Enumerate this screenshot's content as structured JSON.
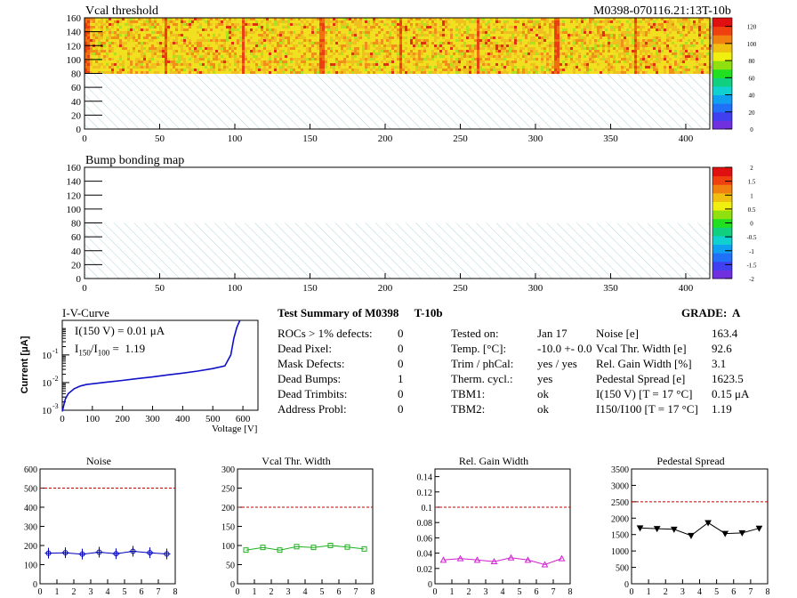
{
  "header": {
    "title": "Vcal threshold",
    "module_id": "M0398-070116.21:13T-10b"
  },
  "maps": [
    {
      "title": "Vcal threshold",
      "xlim": [
        0,
        416
      ],
      "ylim": [
        0,
        160
      ],
      "xticks": [
        0,
        50,
        100,
        150,
        200,
        250,
        300,
        350,
        400
      ],
      "yticks": [
        0,
        20,
        40,
        60,
        80,
        100,
        120,
        140,
        160
      ],
      "colorbar_ticks": [
        "0",
        "20",
        "40",
        "60",
        "80",
        "100",
        "120"
      ],
      "colorbar_range": [
        0,
        130
      ],
      "filled": true
    },
    {
      "title": "Bump bonding map",
      "xlim": [
        0,
        416
      ],
      "ylim": [
        0,
        160
      ],
      "xticks": [
        0,
        50,
        100,
        150,
        200,
        250,
        300,
        350,
        400
      ],
      "yticks": [
        0,
        20,
        40,
        60,
        80,
        100,
        120,
        140,
        160
      ],
      "colorbar_ticks": [
        "-2",
        "-1.5",
        "-1",
        "-0.5",
        "0",
        "0.5",
        "1",
        "1.5",
        "2"
      ],
      "colorbar_range": [
        -2,
        2
      ],
      "filled": false
    }
  ],
  "iv": {
    "title": "I-V-Curve",
    "ylabel": "Current [μA]",
    "xlabel": "Voltage [V]",
    "annotation1": "I(150 V) = 0.01 μA",
    "annotation2_main": "I",
    "annotation2_sub1": "150",
    "annotation2_sep": "/I",
    "annotation2_sub2": "100",
    "annotation2_val": " =  1.19",
    "xticks": [
      "0",
      "100",
      "200",
      "300",
      "400",
      "500",
      "600"
    ],
    "yticks": [
      "10",
      "10",
      "10"
    ],
    "yexp": [
      "-1",
      "-2",
      "-3"
    ],
    "color": "#1010c8"
  },
  "summary": {
    "title": "Test Summary of M0398",
    "tag": "T-10b",
    "grade": "GRADE:  A",
    "col1": [
      {
        "label": "ROCs > 1% defects:",
        "value": "0"
      },
      {
        "label": "Dead Pixel:",
        "value": "0"
      },
      {
        "label": "Mask Defects:",
        "value": "0"
      },
      {
        "label": "Dead Bumps:",
        "value": "1"
      },
      {
        "label": "Dead Trimbits:",
        "value": "0"
      },
      {
        "label": "Address Probl:",
        "value": "0"
      }
    ],
    "col2": [
      {
        "label": "Tested on:",
        "value": "Jan 17"
      },
      {
        "label": "Temp. [°C]:",
        "value": "-10.0 +- 0.0"
      },
      {
        "label": "Trim / phCal:",
        "value": "yes / yes"
      },
      {
        "label": "Therm. cycl.:",
        "value": "yes"
      },
      {
        "label": "TBM1:",
        "value": "ok"
      },
      {
        "label": "TBM2:",
        "value": "ok"
      }
    ],
    "col3": [
      {
        "label": "Noise [e]",
        "value": "163.4"
      },
      {
        "label": "Vcal Thr. Width [e]",
        "value": "92.6"
      },
      {
        "label": "Rel. Gain Width [%]",
        "value": "3.1"
      },
      {
        "label": "Pedestal Spread [e]",
        "value": "1623.5"
      },
      {
        "label": "I(150 V) [T = 17 °C]",
        "value": "0.15 μA"
      },
      {
        "label": "I150/I100  [T = 17 °C]",
        "value": "1.19"
      }
    ]
  },
  "chart_data": [
    {
      "type": "line",
      "title": "Noise",
      "x": [
        0.5,
        1.5,
        2.5,
        3.5,
        4.5,
        5.5,
        6.5,
        7.5
      ],
      "series": [
        {
          "values": [
            160,
            162,
            155,
            165,
            157,
            170,
            162,
            156
          ]
        }
      ],
      "ylim": [
        0,
        600
      ],
      "xlim": [
        0,
        8
      ],
      "yticks": [
        0,
        100,
        200,
        300,
        400,
        500,
        600
      ],
      "ytick_labels": [
        "0",
        "100",
        "200",
        "300",
        "400",
        "500",
        "600"
      ],
      "threshold": 500,
      "color": "#0000c0",
      "marker": "circle-errorbar"
    },
    {
      "type": "line",
      "title": "Vcal Thr. Width",
      "x": [
        0.5,
        1.5,
        2.5,
        3.5,
        4.5,
        5.5,
        6.5,
        7.5
      ],
      "series": [
        {
          "values": [
            88,
            95,
            88,
            97,
            95,
            100,
            96,
            91
          ]
        }
      ],
      "ylim": [
        0,
        300
      ],
      "xlim": [
        0,
        8
      ],
      "yticks": [
        0,
        50,
        100,
        150,
        200,
        250,
        300
      ],
      "ytick_labels": [
        "0",
        "50",
        "100",
        "150",
        "200",
        "250",
        "300"
      ],
      "threshold": 200,
      "color": "#20b020",
      "marker": "square"
    },
    {
      "type": "line",
      "title": "Rel. Gain Width",
      "x": [
        0.5,
        1.5,
        2.5,
        3.5,
        4.5,
        5.5,
        6.5,
        7.5
      ],
      "series": [
        {
          "values": [
            0.031,
            0.033,
            0.031,
            0.029,
            0.034,
            0.031,
            0.025,
            0.033
          ]
        }
      ],
      "ylim": [
        0,
        0.15
      ],
      "xlim": [
        0,
        8
      ],
      "yticks": [
        0,
        0.02,
        0.04,
        0.06,
        0.08,
        0.1,
        0.12,
        0.14
      ],
      "ytick_labels": [
        "0",
        "0.02",
        "0.04",
        "0.06",
        "0.08",
        "0.1",
        "0.12",
        "0.14"
      ],
      "threshold": 0.1,
      "color": "#d020d0",
      "marker": "triangle"
    },
    {
      "type": "line",
      "title": "Pedestal Spread",
      "x": [
        0.5,
        1.5,
        2.5,
        3.5,
        4.5,
        5.5,
        6.5,
        7.5
      ],
      "series": [
        {
          "values": [
            1700,
            1680,
            1660,
            1470,
            1860,
            1530,
            1550,
            1690
          ]
        }
      ],
      "ylim": [
        0,
        3500
      ],
      "xlim": [
        0,
        8
      ],
      "yticks": [
        0,
        500,
        1000,
        1500,
        2000,
        2500,
        3000,
        3500
      ],
      "ytick_labels": [
        "0",
        "500",
        "1000",
        "1500",
        "2000",
        "2500",
        "3000",
        "3500"
      ],
      "threshold": 2500,
      "color": "#000000",
      "marker": "inverted-triangle"
    }
  ],
  "iv_curve": {
    "type": "line",
    "x": [
      0,
      10,
      20,
      40,
      60,
      80,
      100,
      150,
      200,
      250,
      300,
      350,
      400,
      450,
      500,
      540,
      560,
      570,
      580,
      590
    ],
    "y": [
      0.0009,
      0.0025,
      0.004,
      0.006,
      0.0075,
      0.0085,
      0.009,
      0.0105,
      0.012,
      0.014,
      0.016,
      0.019,
      0.022,
      0.026,
      0.032,
      0.04,
      0.1,
      0.4,
      1.0,
      2.0
    ],
    "xlim": [
      0,
      650
    ],
    "ylim_log": [
      -3,
      0.25
    ]
  }
}
